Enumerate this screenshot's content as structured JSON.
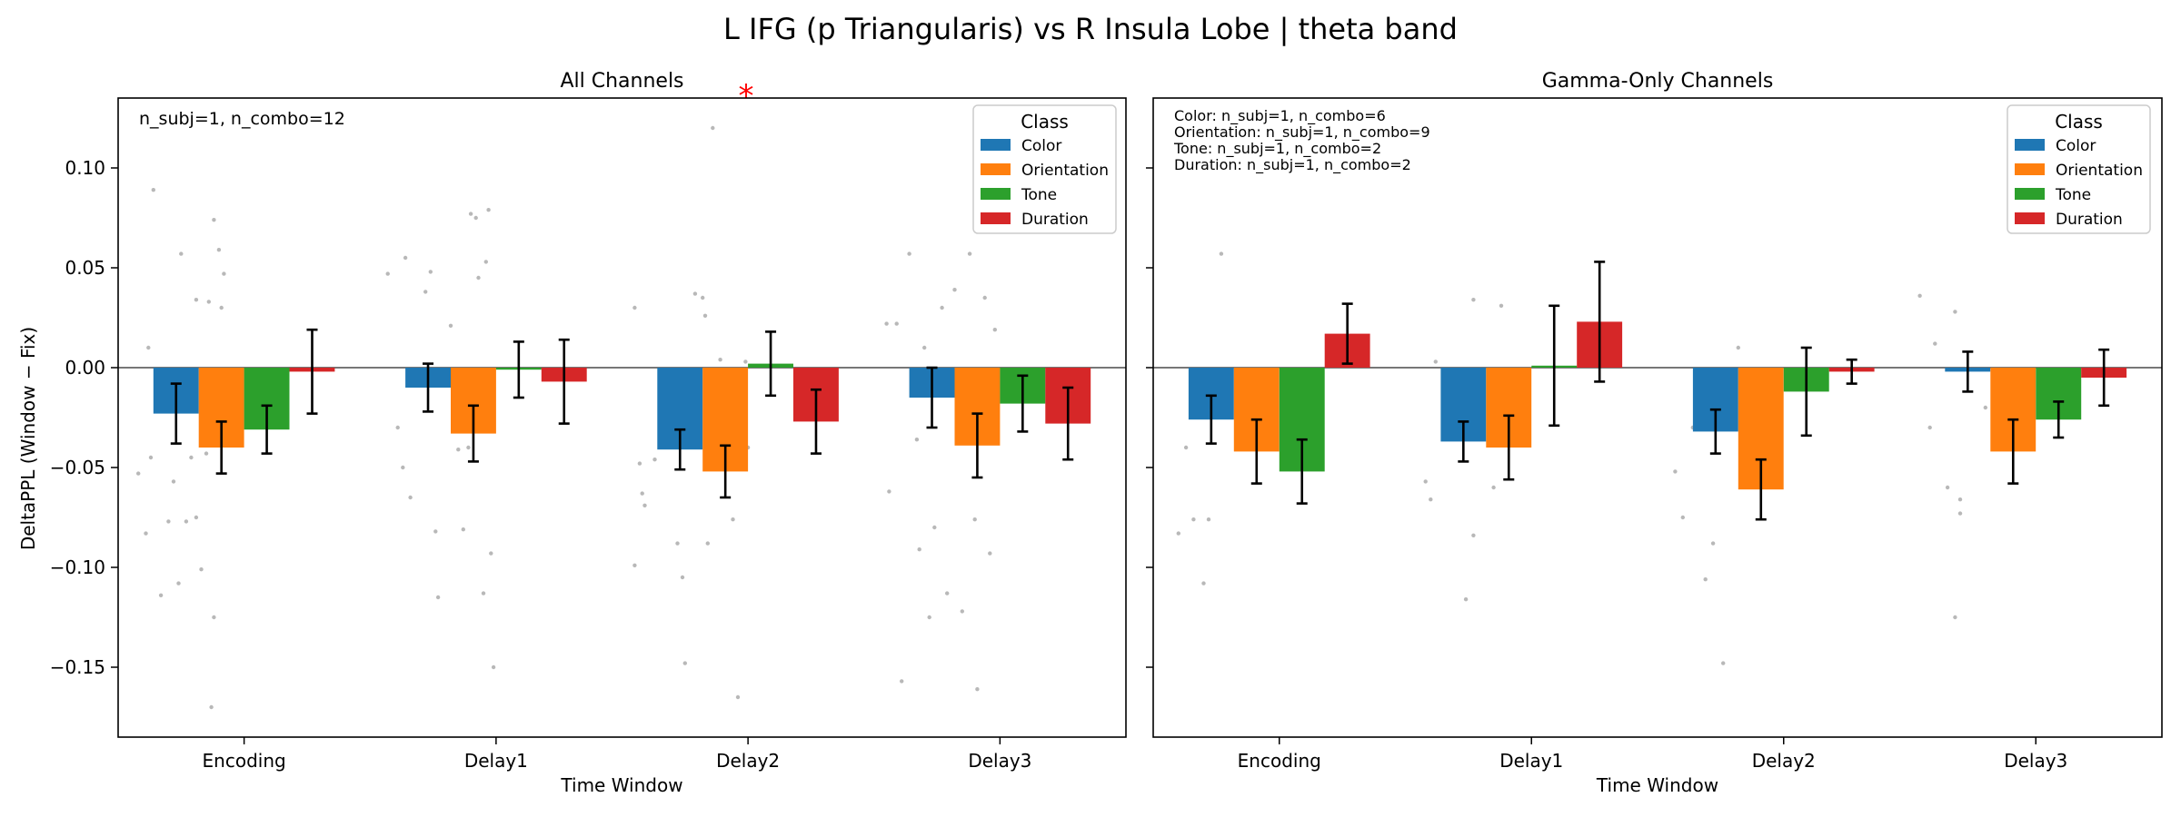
{
  "figure": {
    "suptitle": "L IFG (p Triangularis) vs R Insula Lobe  |  theta band"
  },
  "classes": [
    {
      "name": "Color",
      "color": "#1f77b4"
    },
    {
      "name": "Orientation",
      "color": "#ff7f0e"
    },
    {
      "name": "Tone",
      "color": "#2ca02c"
    },
    {
      "name": "Duration",
      "color": "#d62728"
    }
  ],
  "legend_title": "Class",
  "chart_data": [
    {
      "type": "bar",
      "title": "All Channels",
      "xlabel": "Time Window",
      "ylabel": "DeltaPPL (Window − Fix)",
      "ylim": [
        -0.185,
        0.135
      ],
      "yticks": [
        0.1,
        0.05,
        0.0,
        -0.05,
        -0.1,
        -0.15
      ],
      "ytick_labels": [
        "0.10",
        "0.05",
        "0.00",
        "−0.05",
        "−0.10",
        "−0.15"
      ],
      "categories": [
        "Encoding",
        "Delay1",
        "Delay2",
        "Delay3"
      ],
      "series": [
        {
          "name": "Color",
          "values": [
            -0.023,
            -0.01,
            -0.041,
            -0.015
          ],
          "errors": [
            0.015,
            0.012,
            0.01,
            0.015
          ]
        },
        {
          "name": "Orientation",
          "values": [
            -0.04,
            -0.033,
            -0.052,
            -0.039
          ],
          "errors": [
            0.013,
            0.014,
            0.013,
            0.016
          ]
        },
        {
          "name": "Tone",
          "values": [
            -0.031,
            -0.001,
            0.002,
            -0.018
          ],
          "errors": [
            0.012,
            0.014,
            0.016,
            0.014
          ]
        },
        {
          "name": "Duration",
          "values": [
            -0.002,
            -0.007,
            -0.027,
            -0.028
          ],
          "errors": [
            0.021,
            0.021,
            0.016,
            0.018
          ]
        }
      ],
      "annotation": "n_subj=1, n_combo=12",
      "annotation_lines": [
        "n_subj=1, n_combo=12"
      ],
      "significance_marker": {
        "text": "*",
        "category": "Delay2",
        "color": "#ff0000"
      },
      "legend_position": "top-right",
      "scatter_points": [
        {
          "x": 0.14,
          "y": 0.089
        },
        {
          "x": 0.12,
          "y": 0.01
        },
        {
          "x": 0.08,
          "y": -0.053
        },
        {
          "x": 0.11,
          "y": -0.083
        },
        {
          "x": 0.17,
          "y": -0.114
        },
        {
          "x": 0.13,
          "y": -0.045
        },
        {
          "x": 0.22,
          "y": -0.057
        },
        {
          "x": 0.2,
          "y": -0.077
        },
        {
          "x": 0.24,
          "y": -0.108
        },
        {
          "x": 0.25,
          "y": 0.057
        },
        {
          "x": 0.27,
          "y": -0.077
        },
        {
          "x": 0.33,
          "y": -0.101
        },
        {
          "x": 0.31,
          "y": 0.034
        },
        {
          "x": 0.31,
          "y": -0.075
        },
        {
          "x": 0.35,
          "y": -0.043
        },
        {
          "x": 0.38,
          "y": 0.074
        },
        {
          "x": 0.36,
          "y": 0.033
        },
        {
          "x": 0.4,
          "y": 0.059
        },
        {
          "x": 0.42,
          "y": 0.047
        },
        {
          "x": 0.38,
          "y": -0.125
        },
        {
          "x": 0.37,
          "y": -0.17
        },
        {
          "x": 0.41,
          "y": 0.03
        },
        {
          "x": 0.29,
          "y": -0.045
        },
        {
          "x": 1.07,
          "y": 0.047
        },
        {
          "x": 1.14,
          "y": 0.055
        },
        {
          "x": 1.11,
          "y": -0.03
        },
        {
          "x": 1.16,
          "y": -0.065
        },
        {
          "x": 1.13,
          "y": -0.05
        },
        {
          "x": 1.22,
          "y": 0.038
        },
        {
          "x": 1.24,
          "y": 0.048
        },
        {
          "x": 1.27,
          "y": -0.115
        },
        {
          "x": 1.26,
          "y": -0.082
        },
        {
          "x": 1.32,
          "y": 0.021
        },
        {
          "x": 1.35,
          "y": -0.041
        },
        {
          "x": 1.4,
          "y": 0.077
        },
        {
          "x": 1.42,
          "y": 0.075
        },
        {
          "x": 1.37,
          "y": -0.081
        },
        {
          "x": 1.43,
          "y": 0.045
        },
        {
          "x": 1.46,
          "y": 0.053
        },
        {
          "x": 1.48,
          "y": -0.093
        },
        {
          "x": 1.49,
          "y": -0.15
        },
        {
          "x": 1.47,
          "y": 0.079
        },
        {
          "x": 1.45,
          "y": -0.113
        },
        {
          "x": 1.39,
          "y": -0.04
        },
        {
          "x": 2.05,
          "y": 0.03
        },
        {
          "x": 2.07,
          "y": -0.048
        },
        {
          "x": 2.09,
          "y": -0.069
        },
        {
          "x": 2.05,
          "y": -0.099
        },
        {
          "x": 2.08,
          "y": -0.063
        },
        {
          "x": 2.13,
          "y": -0.046
        },
        {
          "x": 2.22,
          "y": -0.088
        },
        {
          "x": 2.24,
          "y": -0.105
        },
        {
          "x": 2.25,
          "y": -0.148
        },
        {
          "x": 2.29,
          "y": 0.037
        },
        {
          "x": 2.32,
          "y": 0.035
        },
        {
          "x": 2.34,
          "y": -0.088
        },
        {
          "x": 2.36,
          "y": 0.12
        },
        {
          "x": 2.39,
          "y": 0.004
        },
        {
          "x": 2.42,
          "y": -0.016
        },
        {
          "x": 2.44,
          "y": -0.076
        },
        {
          "x": 2.46,
          "y": -0.165
        },
        {
          "x": 2.49,
          "y": 0.003
        },
        {
          "x": 2.5,
          "y": -0.04
        },
        {
          "x": 2.33,
          "y": 0.026
        },
        {
          "x": 3.05,
          "y": 0.022
        },
        {
          "x": 3.09,
          "y": 0.022
        },
        {
          "x": 3.06,
          "y": -0.062
        },
        {
          "x": 3.11,
          "y": -0.157
        },
        {
          "x": 3.14,
          "y": 0.057
        },
        {
          "x": 3.17,
          "y": -0.036
        },
        {
          "x": 3.18,
          "y": -0.091
        },
        {
          "x": 3.22,
          "y": -0.125
        },
        {
          "x": 3.24,
          "y": -0.08
        },
        {
          "x": 3.27,
          "y": 0.03
        },
        {
          "x": 3.29,
          "y": -0.113
        },
        {
          "x": 3.32,
          "y": 0.039
        },
        {
          "x": 3.35,
          "y": -0.122
        },
        {
          "x": 3.38,
          "y": 0.057
        },
        {
          "x": 3.41,
          "y": -0.161
        },
        {
          "x": 3.44,
          "y": 0.035
        },
        {
          "x": 3.46,
          "y": -0.093
        },
        {
          "x": 3.48,
          "y": 0.019
        },
        {
          "x": 3.4,
          "y": -0.076
        },
        {
          "x": 3.2,
          "y": 0.01
        }
      ]
    },
    {
      "type": "bar",
      "title": "Gamma-Only Channels",
      "xlabel": "Time Window",
      "ylabel": "",
      "ylim": [
        -0.185,
        0.135
      ],
      "yticks": [
        0.1,
        0.05,
        0.0,
        -0.05,
        -0.1,
        -0.15
      ],
      "ytick_labels": [],
      "categories": [
        "Encoding",
        "Delay1",
        "Delay2",
        "Delay3"
      ],
      "series": [
        {
          "name": "Color",
          "values": [
            -0.026,
            -0.037,
            -0.032,
            -0.002
          ],
          "errors": [
            0.012,
            0.01,
            0.011,
            0.01
          ]
        },
        {
          "name": "Orientation",
          "values": [
            -0.042,
            -0.04,
            -0.061,
            -0.042
          ],
          "errors": [
            0.016,
            0.016,
            0.015,
            0.016
          ]
        },
        {
          "name": "Tone",
          "values": [
            -0.052,
            0.001,
            -0.012,
            -0.026
          ],
          "errors": [
            0.016,
            0.03,
            0.022,
            0.009
          ]
        },
        {
          "name": "Duration",
          "values": [
            0.017,
            0.023,
            -0.002,
            -0.005
          ],
          "errors": [
            0.015,
            0.03,
            0.006,
            0.014
          ]
        }
      ],
      "annotation_lines": [
        "Color: n_subj=1, n_combo=6",
        "Orientation: n_subj=1, n_combo=9",
        "Tone: n_subj=1, n_combo=2",
        "Duration: n_subj=1, n_combo=2"
      ],
      "legend_position": "top-right",
      "scatter_points": [
        {
          "x": 0.1,
          "y": -0.083
        },
        {
          "x": 0.16,
          "y": -0.076
        },
        {
          "x": 0.2,
          "y": -0.108
        },
        {
          "x": 0.22,
          "y": -0.076
        },
        {
          "x": 0.27,
          "y": 0.057
        },
        {
          "x": 0.13,
          "y": -0.04
        },
        {
          "x": 1.08,
          "y": -0.057
        },
        {
          "x": 1.1,
          "y": -0.066
        },
        {
          "x": 1.12,
          "y": 0.003
        },
        {
          "x": 1.24,
          "y": -0.116
        },
        {
          "x": 1.27,
          "y": 0.034
        },
        {
          "x": 1.27,
          "y": -0.084
        },
        {
          "x": 1.38,
          "y": 0.031
        },
        {
          "x": 1.45,
          "y": -0.02
        },
        {
          "x": 1.35,
          "y": -0.06
        },
        {
          "x": 2.07,
          "y": -0.052
        },
        {
          "x": 2.1,
          "y": -0.075
        },
        {
          "x": 2.19,
          "y": -0.106
        },
        {
          "x": 2.22,
          "y": -0.088
        },
        {
          "x": 2.26,
          "y": -0.148
        },
        {
          "x": 2.32,
          "y": 0.01
        },
        {
          "x": 2.4,
          "y": -0.003
        },
        {
          "x": 2.14,
          "y": -0.03
        },
        {
          "x": 3.04,
          "y": 0.036
        },
        {
          "x": 3.08,
          "y": -0.03
        },
        {
          "x": 3.1,
          "y": 0.012
        },
        {
          "x": 3.15,
          "y": -0.06
        },
        {
          "x": 3.18,
          "y": -0.125
        },
        {
          "x": 3.2,
          "y": -0.073
        },
        {
          "x": 3.2,
          "y": -0.066
        },
        {
          "x": 3.18,
          "y": 0.028
        },
        {
          "x": 3.3,
          "y": -0.02
        }
      ]
    }
  ]
}
